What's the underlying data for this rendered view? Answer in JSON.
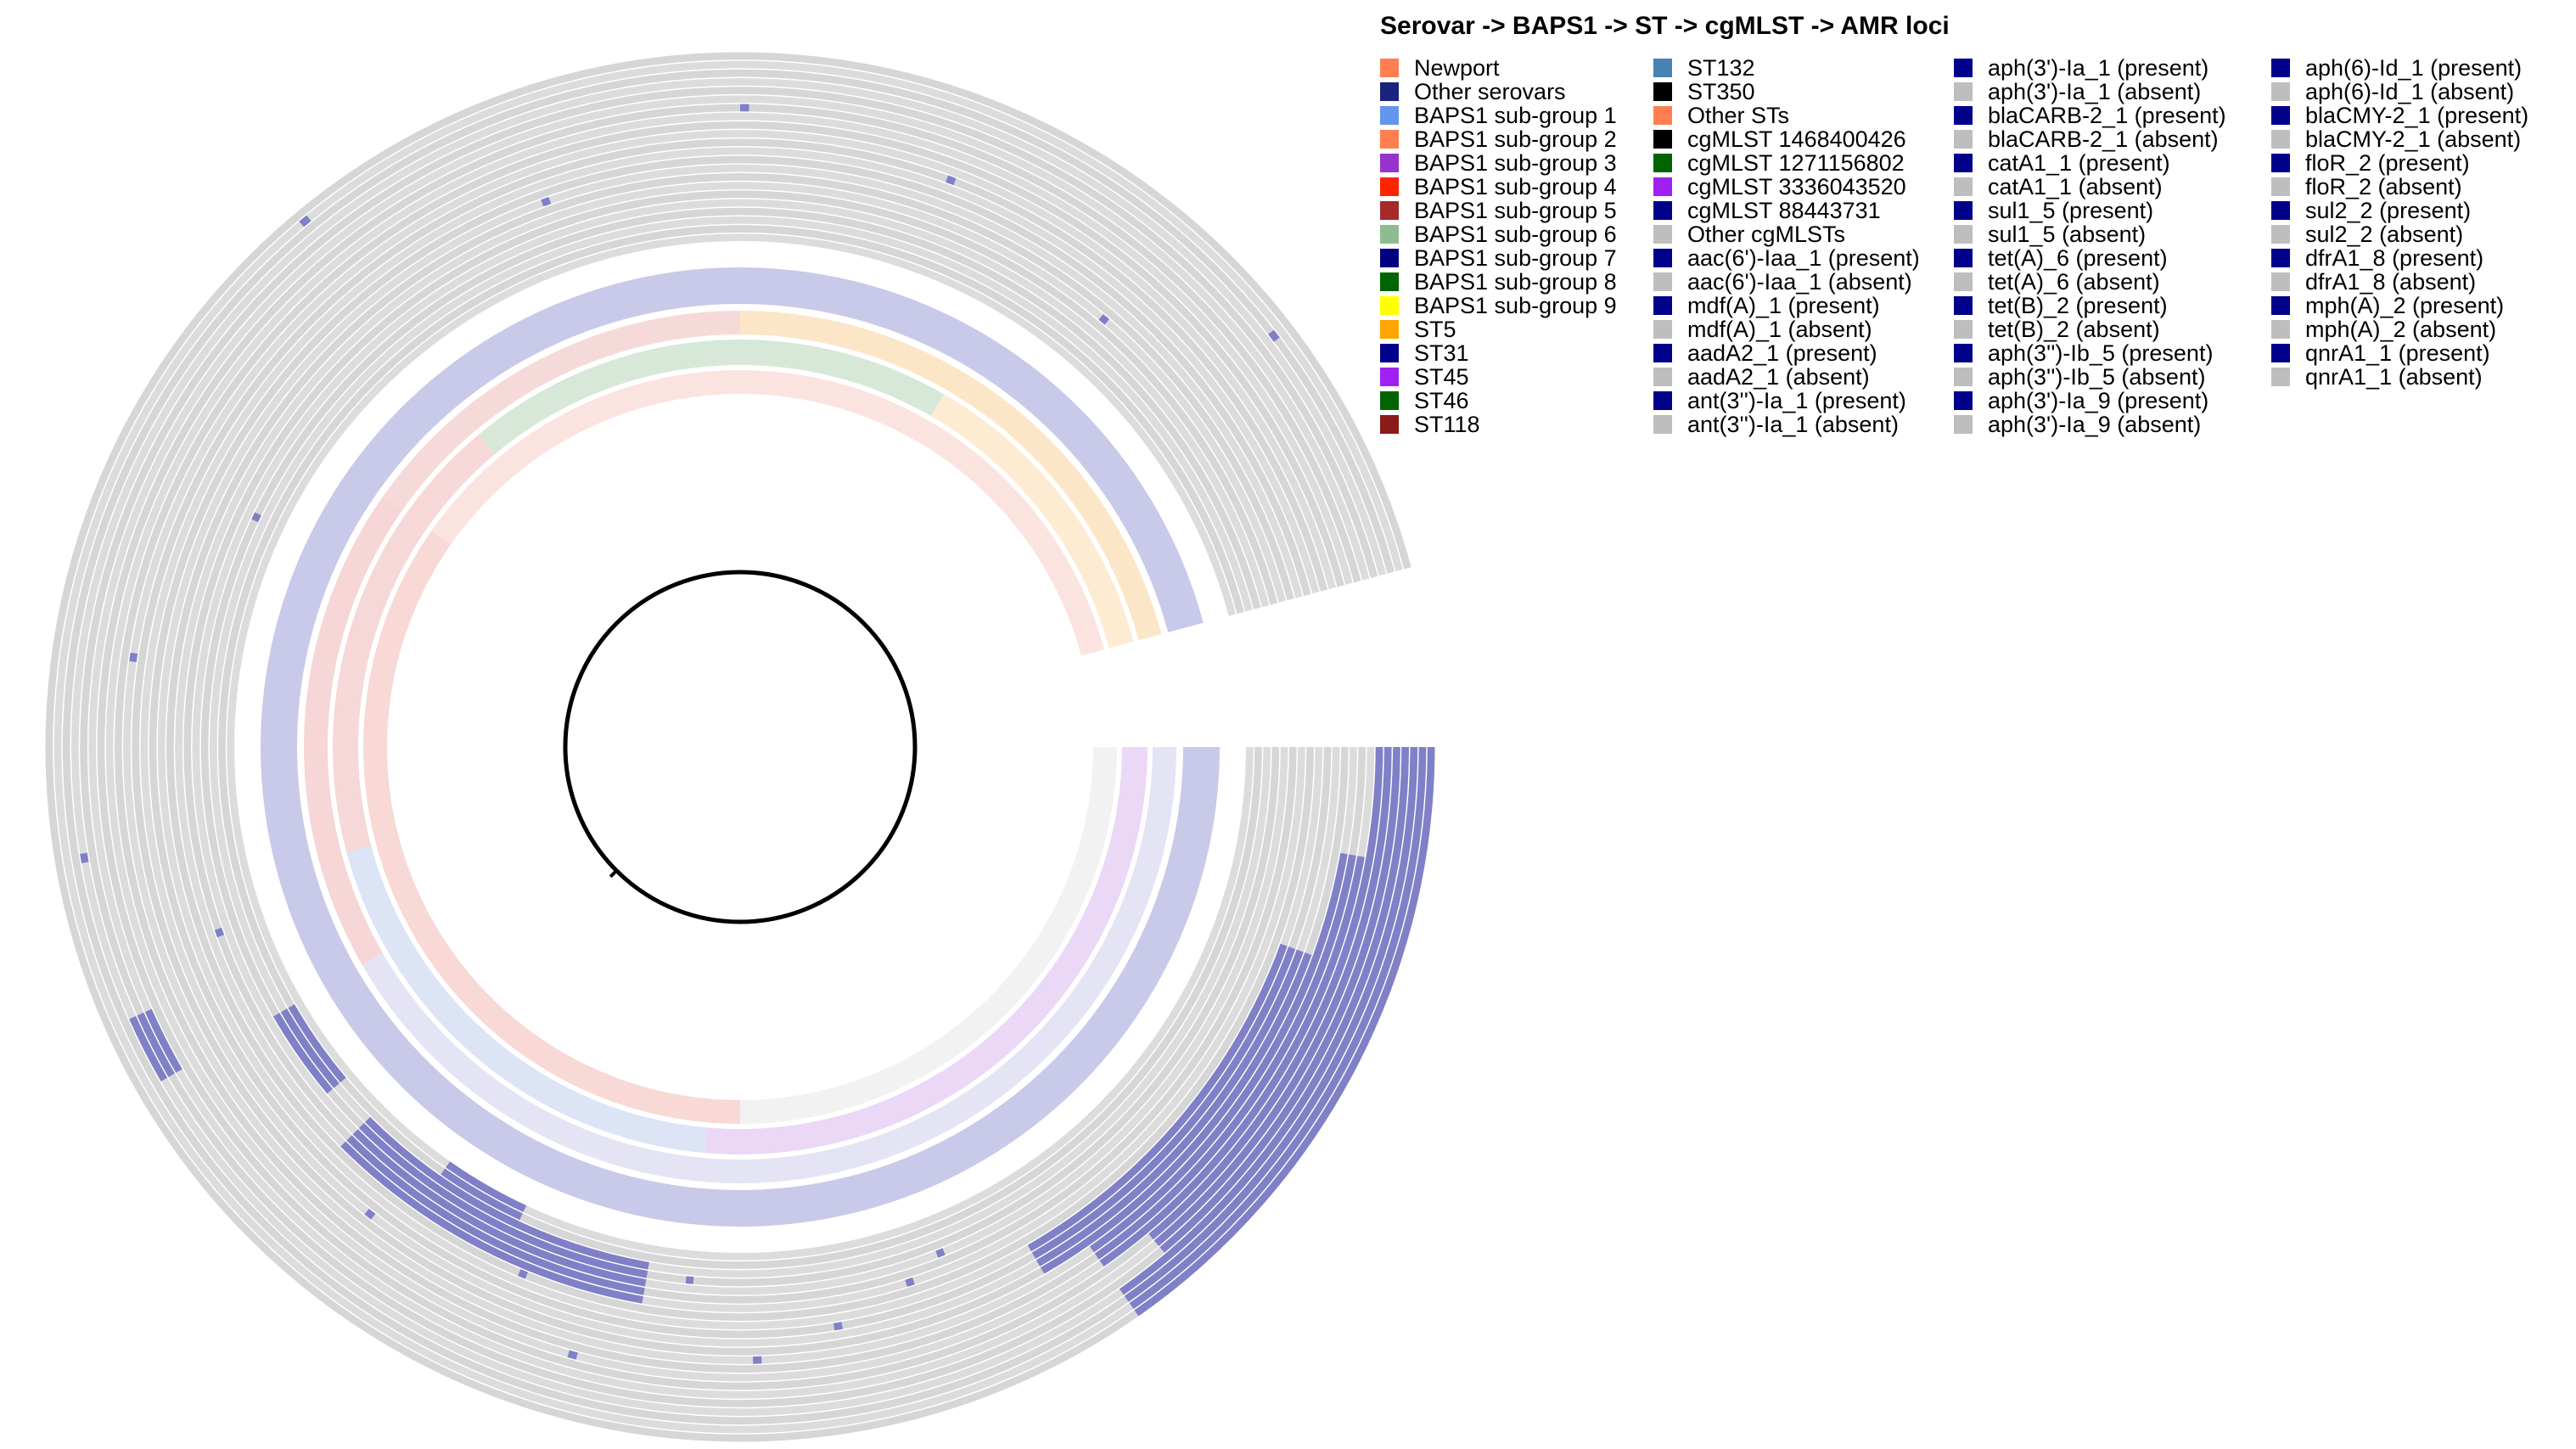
{
  "title": "Serovar -> BAPS1 -> ST -> cgMLST -> AMR loci",
  "legend": [
    [
      {
        "label": "Newport",
        "color": "#FF7F50"
      },
      {
        "label": "Other serovars",
        "color": "#1A237E"
      },
      {
        "label": "BAPS1 sub-group 1",
        "color": "#6495ED"
      },
      {
        "label": "BAPS1 sub-group 2",
        "color": "#FF7F50"
      },
      {
        "label": "BAPS1 sub-group 3",
        "color": "#9932CC"
      },
      {
        "label": "BAPS1 sub-group 4",
        "color": "#FF2400"
      },
      {
        "label": "BAPS1 sub-group 5",
        "color": "#A52A2A"
      },
      {
        "label": "BAPS1 sub-group 6",
        "color": "#8FBC8F"
      },
      {
        "label": "BAPS1 sub-group 7",
        "color": "#000080"
      },
      {
        "label": "BAPS1 sub-group 8",
        "color": "#006400"
      },
      {
        "label": "BAPS1 sub-group 9",
        "color": "#FFFF00"
      },
      {
        "label": "ST5",
        "color": "#FFA500"
      },
      {
        "label": "ST31",
        "color": "#00008B"
      },
      {
        "label": "ST45",
        "color": "#A020F0"
      },
      {
        "label": "ST46",
        "color": "#006400"
      },
      {
        "label": "ST118",
        "color": "#8B1A1A"
      }
    ],
    [
      {
        "label": "ST132",
        "color": "#4682B4"
      },
      {
        "label": "ST350",
        "color": "#000000"
      },
      {
        "label": "Other STs",
        "color": "#FF7F50"
      },
      {
        "label": "cgMLST 1468400426",
        "color": "#000000"
      },
      {
        "label": "cgMLST 1271156802",
        "color": "#006400"
      },
      {
        "label": "cgMLST 3336043520",
        "color": "#A020F0"
      },
      {
        "label": "cgMLST 88443731",
        "color": "#00008B"
      },
      {
        "label": "Other cgMLSTs",
        "color": "#BEBEBE"
      },
      {
        "label": "aac(6')-Iaa_1 (present)",
        "color": "#00008B"
      },
      {
        "label": "aac(6')-Iaa_1 (absent)",
        "color": "#BEBEBE"
      },
      {
        "label": "mdf(A)_1 (present)",
        "color": "#00008B"
      },
      {
        "label": "mdf(A)_1 (absent)",
        "color": "#BEBEBE"
      },
      {
        "label": "aadA2_1 (present)",
        "color": "#00008B"
      },
      {
        "label": "aadA2_1 (absent)",
        "color": "#BEBEBE"
      },
      {
        "label": "ant(3'')-Ia_1 (present)",
        "color": "#00008B"
      },
      {
        "label": "ant(3'')-Ia_1 (absent)",
        "color": "#BEBEBE"
      }
    ],
    [
      {
        "label": "aph(3')-Ia_1 (present)",
        "color": "#00008B"
      },
      {
        "label": "aph(3')-Ia_1 (absent)",
        "color": "#BEBEBE"
      },
      {
        "label": "blaCARB-2_1 (present)",
        "color": "#00008B"
      },
      {
        "label": "blaCARB-2_1 (absent)",
        "color": "#BEBEBE"
      },
      {
        "label": "catA1_1 (present)",
        "color": "#00008B"
      },
      {
        "label": "catA1_1 (absent)",
        "color": "#BEBEBE"
      },
      {
        "label": "sul1_5 (present)",
        "color": "#00008B"
      },
      {
        "label": "sul1_5 (absent)",
        "color": "#BEBEBE"
      },
      {
        "label": "tet(A)_6 (present)",
        "color": "#00008B"
      },
      {
        "label": "tet(A)_6 (absent)",
        "color": "#BEBEBE"
      },
      {
        "label": "tet(B)_2 (present)",
        "color": "#00008B"
      },
      {
        "label": "tet(B)_2 (absent)",
        "color": "#BEBEBE"
      },
      {
        "label": "aph(3'')-Ib_5 (present)",
        "color": "#00008B"
      },
      {
        "label": "aph(3'')-Ib_5 (absent)",
        "color": "#BEBEBE"
      },
      {
        "label": "aph(3')-Ia_9 (present)",
        "color": "#00008B"
      },
      {
        "label": "aph(3')-Ia_9 (absent)",
        "color": "#BEBEBE"
      }
    ],
    [
      {
        "label": "aph(6)-Id_1 (present)",
        "color": "#00008B"
      },
      {
        "label": "aph(6)-Id_1 (absent)",
        "color": "#BEBEBE"
      },
      {
        "label": "blaCMY-2_1 (present)",
        "color": "#00008B"
      },
      {
        "label": "blaCMY-2_1 (absent)",
        "color": "#BEBEBE"
      },
      {
        "label": "floR_2  (present)",
        "color": "#00008B"
      },
      {
        "label": "floR_2 (absent)",
        "color": "#BEBEBE"
      },
      {
        "label": "sul2_2 (present)",
        "color": "#00008B"
      },
      {
        "label": "sul2_2 (absent)",
        "color": "#BEBEBE"
      },
      {
        "label": "dfrA1_8 (present)",
        "color": "#00008B"
      },
      {
        "label": "dfrA1_8 (absent)",
        "color": "#BEBEBE"
      },
      {
        "label": "mph(A)_2 (present)",
        "color": "#00008B"
      },
      {
        "label": "mph(A)_2 (absent)",
        "color": "#BEBEBE"
      },
      {
        "label": "qnrA1_1 (present)",
        "color": "#00008B"
      },
      {
        "label": "qnrA1_1 (absent)",
        "color": "#BEBEBE"
      }
    ]
  ],
  "colors": {
    "present": "#8080C8",
    "absent": "#D9D9D9",
    "ring_divider": "#EDEDED",
    "tree": "#000000"
  }
}
